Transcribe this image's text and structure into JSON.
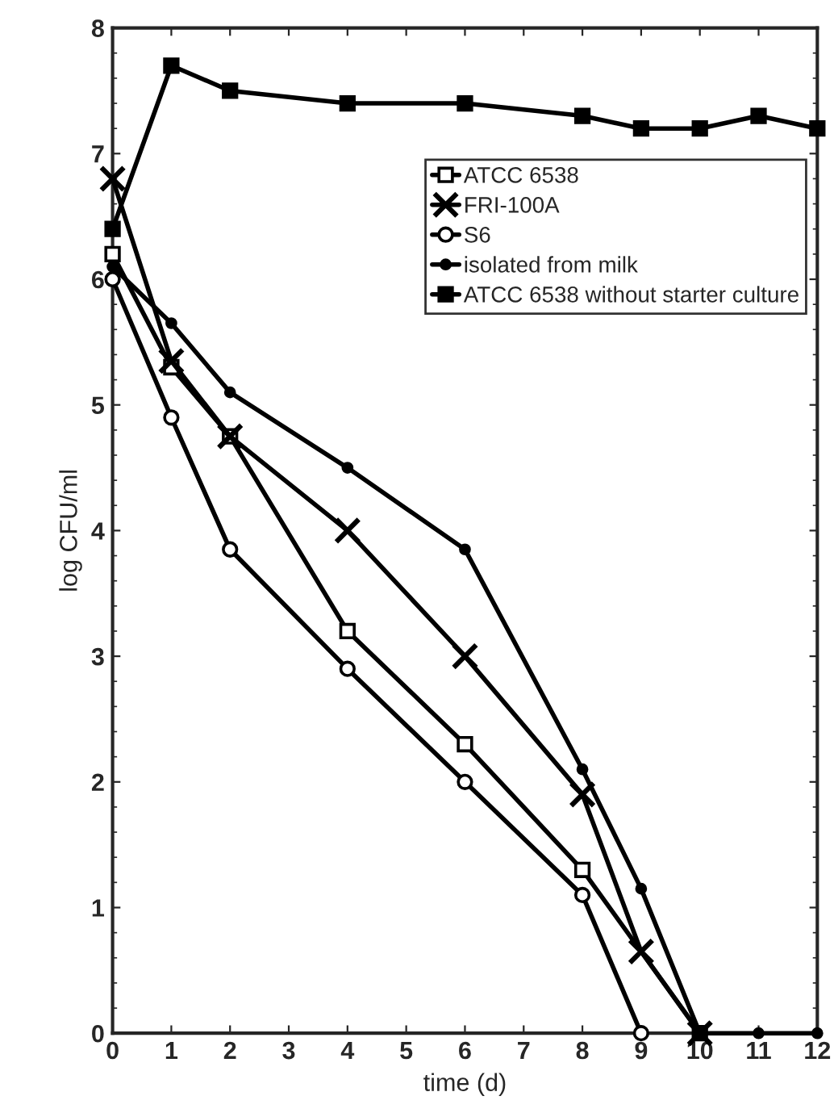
{
  "chart_data": {
    "type": "line",
    "xlabel": "time (d)",
    "ylabel": "log CFU/ml",
    "xlim": [
      0,
      12
    ],
    "ylim": [
      0,
      8
    ],
    "xticks": [
      0,
      1,
      2,
      3,
      4,
      5,
      6,
      7,
      8,
      9,
      10,
      11,
      12
    ],
    "yticks": [
      0,
      1,
      2,
      3,
      4,
      5,
      6,
      7,
      8
    ],
    "grid": false,
    "legend": "top right",
    "line_style": "solid",
    "series": [
      {
        "name": "ATCC 6538",
        "color": "#000000",
        "marker": "square_open",
        "x": [
          0,
          1,
          2,
          4,
          6,
          8,
          10
        ],
        "values": [
          6.2,
          5.3,
          4.75,
          3.2,
          2.3,
          1.3,
          0
        ]
      },
      {
        "name": "FRI-100A",
        "color": "#000000",
        "marker": "cross",
        "x": [
          0,
          1,
          2,
          4,
          6,
          8,
          9,
          10
        ],
        "values": [
          6.8,
          5.35,
          4.75,
          4.0,
          3.0,
          1.9,
          0.65,
          0
        ]
      },
      {
        "name": "S6",
        "color": "#000000",
        "marker": "circle_open",
        "x": [
          0,
          1,
          2,
          4,
          6,
          8,
          9
        ],
        "values": [
          6.0,
          4.9,
          3.85,
          2.9,
          2.0,
          1.1,
          0
        ]
      },
      {
        "name": "isolated from milk",
        "color": "#000000",
        "marker": "circle",
        "x": [
          0,
          1,
          2,
          4,
          6,
          8,
          9,
          10,
          11,
          12
        ],
        "values": [
          6.1,
          5.65,
          5.1,
          4.5,
          3.85,
          2.1,
          1.15,
          0,
          0,
          0
        ]
      },
      {
        "name": "ATCC 6538 without starter culture",
        "color": "#000000",
        "marker": "square",
        "x": [
          0,
          1,
          2,
          4,
          6,
          8,
          9,
          10,
          11,
          12
        ],
        "values": [
          6.4,
          7.7,
          7.5,
          7.4,
          7.4,
          7.3,
          7.2,
          7.2,
          7.3,
          7.2
        ]
      }
    ]
  }
}
